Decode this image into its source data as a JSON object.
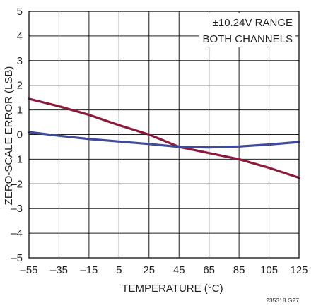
{
  "chart_data": {
    "type": "line",
    "title": "",
    "xlabel": "TEMPERATURE  (°C)",
    "ylabel": "ZERO-SCALE ERROR (LSB)",
    "xlim": [
      -55,
      125
    ],
    "ylim": [
      -5,
      5
    ],
    "x_ticks": [
      -55,
      -35,
      -15,
      5,
      25,
      45,
      65,
      85,
      105,
      125
    ],
    "x_tick_labels": [
      "–55",
      "–35",
      "–15",
      "5",
      "25",
      "45",
      "65",
      "85",
      "105",
      "125"
    ],
    "y_ticks": [
      5,
      4,
      3,
      2,
      1,
      0,
      -1,
      -2,
      -3,
      -4,
      -5
    ],
    "y_tick_labels": [
      "5",
      "4",
      "3",
      "2",
      "1",
      "0",
      "–1",
      "–2",
      "–3",
      "–4",
      "–5"
    ],
    "grid": true,
    "annotations": [
      "±10.24V RANGE",
      "BOTH CHANNELS"
    ],
    "figure_id": "235318 G27",
    "series": [
      {
        "color": "#8b1a3a",
        "x": [
          -55,
          -35,
          -15,
          5,
          25,
          45,
          65,
          85,
          105,
          125
        ],
        "values": [
          1.45,
          1.15,
          0.8,
          0.38,
          0.0,
          -0.5,
          -0.75,
          -1.0,
          -1.35,
          -1.75
        ]
      },
      {
        "color": "#3f4a9a",
        "x": [
          -55,
          -35,
          -15,
          5,
          25,
          45,
          65,
          85,
          105,
          125
        ],
        "values": [
          0.1,
          -0.05,
          -0.18,
          -0.28,
          -0.38,
          -0.5,
          -0.52,
          -0.48,
          -0.4,
          -0.3
        ]
      }
    ]
  }
}
